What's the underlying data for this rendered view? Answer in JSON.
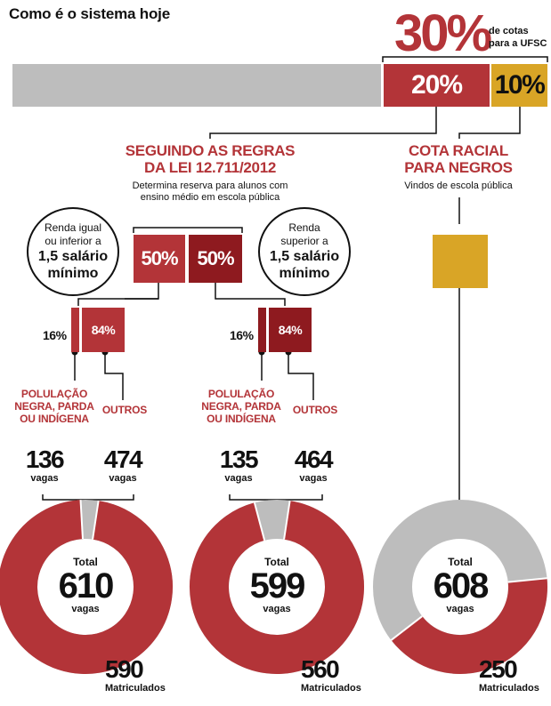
{
  "title": "Como é o sistema hoje",
  "headline": {
    "percent": "30%",
    "note_line1": "de cotas",
    "note_line2": "para a UFSC"
  },
  "bar": {
    "red_label": "20%",
    "gold_label": "10%",
    "red_share": 20,
    "gold_share": 10
  },
  "colors": {
    "red": "#b33438",
    "dark_red": "#8e1a1f",
    "gold": "#d9a526",
    "grey": "#bdbdbd"
  },
  "law_section": {
    "title_line1": "SEGUINDO AS REGRAS",
    "title_line2": "DA LEI 12.711/2012",
    "sub_line1": "Determina reserva para alunos com",
    "sub_line2": "ensino  médio em escola pública",
    "left_box": "50%",
    "right_box": "50%"
  },
  "racial_section": {
    "title_line1": "COTA RACIAL",
    "title_line2": "PARA NEGROS",
    "sub": "Vindos de escola pública"
  },
  "bubble_left": {
    "line1": "Renda igual",
    "line2": "ou inferior a",
    "line3": "1,5 salário",
    "line4": "mínimo"
  },
  "bubble_right": {
    "line1": "Renda",
    "line2": "superior a",
    "line3": "1,5 salário",
    "line4": "mínimo"
  },
  "groups": [
    {
      "pct_small": "16%",
      "pct_big": "84%",
      "label_left_1": "POLULAÇÃO",
      "label_left_2": "NEGRA, PARDA",
      "label_left_3": "OU INDÍGENA",
      "label_right": "OUTROS",
      "vagas_left": "136",
      "vagas_right": "474",
      "vagas_word": "vagas"
    },
    {
      "pct_small": "16%",
      "pct_big": "84%",
      "label_left_1": "POLULAÇÃO",
      "label_left_2": "NEGRA, PARDA",
      "label_left_3": "OU INDÍGENA",
      "label_right": "OUTROS",
      "vagas_left": "135",
      "vagas_right": "464",
      "vagas_word": "vagas"
    }
  ],
  "donuts": [
    {
      "total_word": "Total",
      "total": 610,
      "vagas_word": "vagas",
      "filled": 590,
      "filled_label": "590",
      "filled_word": "Matriculados",
      "fill_color": "#b33438"
    },
    {
      "total_word": "Total",
      "total": 599,
      "vagas_word": "vagas",
      "filled": 560,
      "filled_label": "560",
      "filled_word": "Matriculados",
      "fill_color": "#b33438"
    },
    {
      "total_word": "Total",
      "total": 608,
      "vagas_word": "vagas",
      "filled": 250,
      "filled_label": "250",
      "filled_word": "Matriculados",
      "fill_color": "#b33438"
    }
  ]
}
